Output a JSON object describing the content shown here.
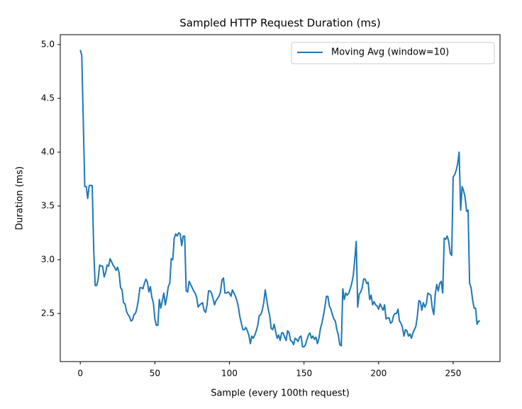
{
  "chart_data": {
    "type": "line",
    "title": "Sampled HTTP Request Duration (ms)",
    "xlabel": "Sample (every 100th request)",
    "ylabel": "Duration (ms)",
    "x": [
      0,
      1,
      2,
      3,
      4,
      5,
      6,
      7,
      8,
      9,
      10,
      11,
      12,
      13,
      14,
      15,
      16,
      17,
      18,
      19,
      20,
      21,
      22,
      23,
      24,
      25,
      26,
      27,
      28,
      29,
      30,
      31,
      32,
      33,
      34,
      35,
      36,
      37,
      38,
      39,
      40,
      41,
      42,
      43,
      44,
      45,
      46,
      47,
      48,
      49,
      50,
      51,
      52,
      53,
      54,
      55,
      56,
      57,
      58,
      59,
      60,
      61,
      62,
      63,
      64,
      65,
      66,
      67,
      68,
      69,
      70,
      71,
      72,
      73,
      74,
      75,
      76,
      77,
      78,
      79,
      80,
      81,
      82,
      83,
      84,
      85,
      86,
      87,
      88,
      89,
      90,
      91,
      92,
      93,
      94,
      95,
      96,
      97,
      98,
      99,
      100,
      101,
      102,
      103,
      104,
      105,
      106,
      107,
      108,
      109,
      110,
      111,
      112,
      113,
      114,
      115,
      116,
      117,
      118,
      119,
      120,
      121,
      122,
      123,
      124,
      125,
      126,
      127,
      128,
      129,
      130,
      131,
      132,
      133,
      134,
      135,
      136,
      137,
      138,
      139,
      140,
      141,
      142,
      143,
      144,
      145,
      146,
      147,
      148,
      149,
      150,
      151,
      152,
      153,
      154,
      155,
      156,
      157,
      158,
      159,
      160,
      161,
      162,
      163,
      164,
      165,
      166,
      167,
      168,
      169,
      170,
      171,
      172,
      173,
      174,
      175,
      176,
      177,
      178,
      179,
      180,
      181,
      182,
      183,
      184,
      185,
      186,
      187,
      188,
      189,
      190,
      191,
      192,
      193,
      194,
      195,
      196,
      197,
      198,
      199,
      200,
      201,
      202,
      203,
      204,
      205,
      206,
      207,
      208,
      209,
      210,
      211,
      212,
      213,
      214,
      215,
      216,
      217,
      218,
      219,
      220,
      221,
      222,
      223,
      224,
      225,
      226,
      227,
      228,
      229,
      230,
      231,
      232,
      233,
      234,
      235,
      236,
      237,
      238,
      239,
      240,
      241,
      242,
      243,
      244,
      245,
      246,
      247,
      248,
      249,
      250,
      251,
      252,
      253,
      254,
      255,
      256,
      257,
      258,
      259,
      260,
      261,
      262,
      263,
      264,
      265,
      266,
      267,
      268
    ],
    "series": [
      {
        "name": "Moving Avg (window=10)",
        "color": "#1f77b4",
        "values": [
          4.95,
          4.9,
          4.3,
          3.68,
          3.68,
          3.57,
          3.69,
          3.69,
          3.69,
          3.1,
          2.76,
          2.76,
          2.82,
          2.95,
          2.94,
          2.94,
          2.84,
          2.88,
          2.95,
          2.94,
          3.01,
          2.98,
          2.95,
          2.93,
          2.9,
          2.93,
          2.88,
          2.74,
          2.72,
          2.6,
          2.59,
          2.52,
          2.49,
          2.47,
          2.43,
          2.44,
          2.49,
          2.5,
          2.55,
          2.63,
          2.74,
          2.74,
          2.73,
          2.78,
          2.82,
          2.79,
          2.7,
          2.75,
          2.65,
          2.6,
          2.45,
          2.39,
          2.39,
          2.63,
          2.55,
          2.62,
          2.69,
          2.58,
          2.65,
          2.75,
          2.78,
          3.01,
          3.0,
          3.2,
          3.24,
          3.22,
          3.25,
          3.24,
          3.13,
          3.22,
          3.22,
          2.71,
          2.7,
          2.8,
          2.77,
          2.74,
          2.71,
          2.69,
          2.65,
          2.56,
          2.58,
          2.59,
          2.6,
          2.53,
          2.51,
          2.58,
          2.71,
          2.71,
          2.69,
          2.64,
          2.58,
          2.62,
          2.64,
          2.66,
          2.7,
          2.81,
          2.83,
          2.69,
          2.69,
          2.7,
          2.69,
          2.66,
          2.72,
          2.69,
          2.66,
          2.62,
          2.56,
          2.47,
          2.41,
          2.35,
          2.35,
          2.37,
          2.34,
          2.3,
          2.22,
          2.29,
          2.27,
          2.3,
          2.34,
          2.39,
          2.48,
          2.49,
          2.53,
          2.6,
          2.72,
          2.63,
          2.54,
          2.48,
          2.36,
          2.35,
          2.4,
          2.33,
          2.27,
          2.3,
          2.25,
          2.32,
          2.32,
          2.28,
          2.25,
          2.34,
          2.32,
          2.25,
          2.24,
          2.21,
          2.27,
          2.26,
          2.24,
          2.28,
          2.29,
          2.19,
          2.19,
          2.21,
          2.26,
          2.3,
          2.32,
          2.27,
          2.29,
          2.26,
          2.28,
          2.22,
          2.27,
          2.36,
          2.41,
          2.48,
          2.56,
          2.66,
          2.66,
          2.57,
          2.54,
          2.49,
          2.45,
          2.43,
          2.35,
          2.3,
          2.21,
          2.2,
          2.73,
          2.63,
          2.69,
          2.67,
          2.69,
          2.73,
          2.78,
          2.85,
          3.0,
          3.17,
          2.56,
          2.68,
          2.7,
          2.74,
          2.82,
          2.82,
          2.78,
          2.79,
          2.63,
          2.67,
          2.58,
          2.61,
          2.58,
          2.57,
          2.54,
          2.59,
          2.56,
          2.53,
          2.58,
          2.45,
          2.46,
          2.46,
          2.41,
          2.42,
          2.48,
          2.5,
          2.5,
          2.54,
          2.43,
          2.41,
          2.37,
          2.29,
          2.35,
          2.34,
          2.29,
          2.31,
          2.27,
          2.32,
          2.35,
          2.38,
          2.48,
          2.62,
          2.61,
          2.53,
          2.6,
          2.56,
          2.59,
          2.69,
          2.68,
          2.67,
          2.55,
          2.49,
          2.68,
          2.77,
          2.71,
          2.78,
          2.8,
          2.69,
          3.2,
          3.19,
          3.22,
          3.17,
          3.06,
          3.04,
          3.77,
          3.79,
          3.83,
          3.89,
          4.0,
          3.46,
          3.68,
          3.64,
          3.58,
          3.45,
          3.46,
          2.78,
          2.74,
          2.63,
          2.55,
          2.55,
          2.4,
          2.43,
          2.43
        ]
      }
    ],
    "xlim": [
      -13.4,
      281.4
    ],
    "xticks": [
      0,
      50,
      100,
      150,
      200,
      250
    ],
    "ylim": [
      2.053,
      5.092
    ],
    "yticks": [
      2.5,
      {
        "value": 3,
        "label": "3.0"
      },
      3.5,
      {
        "value": 4,
        "label": "4.0"
      },
      4.5,
      {
        "value": 5,
        "label": "5.0"
      }
    ],
    "legend": "upper right"
  }
}
